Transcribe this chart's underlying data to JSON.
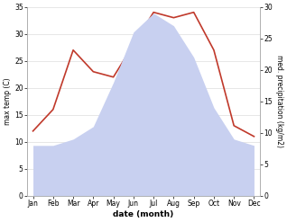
{
  "months": [
    "Jan",
    "Feb",
    "Mar",
    "Apr",
    "May",
    "Jun",
    "Jul",
    "Aug",
    "Sep",
    "Oct",
    "Nov",
    "Dec"
  ],
  "temperature": [
    12,
    16,
    27,
    23,
    22,
    28,
    34,
    33,
    34,
    27,
    13,
    11
  ],
  "precipitation": [
    8,
    8,
    9,
    11,
    18,
    26,
    29,
    27,
    22,
    14,
    9,
    8
  ],
  "temp_color": "#c0392b",
  "precip_fill_color": "#c8d0f0",
  "temp_ylim": [
    0,
    35
  ],
  "precip_ylim": [
    0,
    30
  ],
  "temp_yticks": [
    0,
    5,
    10,
    15,
    20,
    25,
    30,
    35
  ],
  "precip_yticks": [
    0,
    5,
    10,
    15,
    20,
    25,
    30
  ],
  "xlabel": "date (month)",
  "ylabel_left": "max temp (C)",
  "ylabel_right": "med. precipitation (kg/m2)",
  "background_color": "#ffffff",
  "grid_color": "#dddddd",
  "spine_color": "#aaaaaa"
}
